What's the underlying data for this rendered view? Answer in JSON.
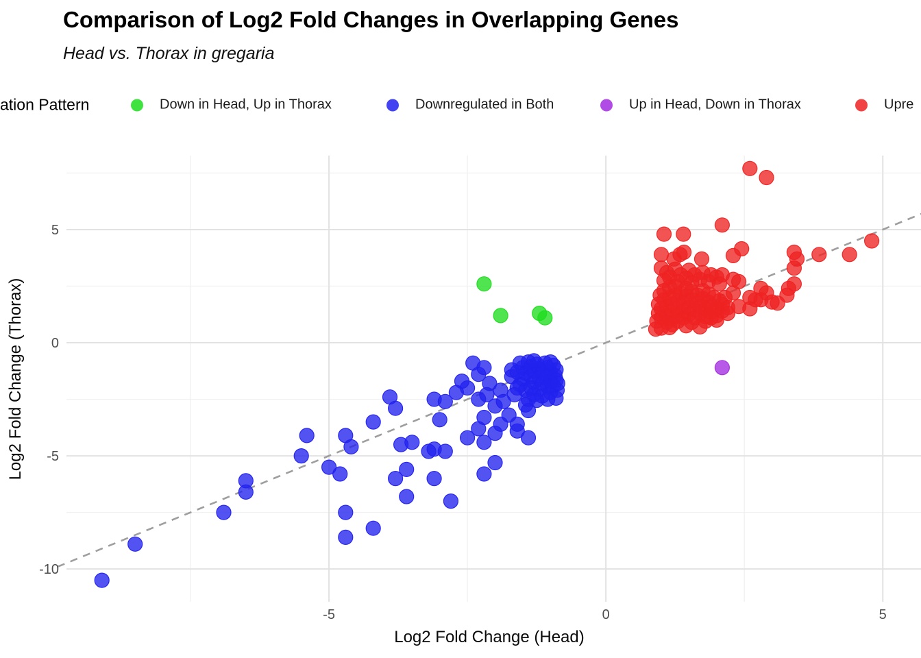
{
  "title": "Comparison of Log2 Fold Changes in Overlapping Genes",
  "subtitle": "Head vs. Thorax in gregaria",
  "legend": {
    "title": "ation Pattern",
    "items": [
      {
        "label": "Down in Head, Up in Thorax",
        "color": "#1fdd1f"
      },
      {
        "label": "Downregulated in Both",
        "color": "#2222ee"
      },
      {
        "label": "Up in Head, Down in Thorax",
        "color": "#a32be0"
      },
      {
        "label": "Upre",
        "color": "#ee2222"
      }
    ]
  },
  "colors": {
    "green": "#1fdd1f",
    "blue": "#2222ee",
    "purple": "#a32be0",
    "red": "#ee2222",
    "grid_major": "#e2e2e2",
    "grid_minor": "#f1f1f1",
    "reference_line": "#9e9e9e",
    "tick_label": "#4d4d4d"
  },
  "chart_data": {
    "type": "scatter",
    "title": "Comparison of Log2 Fold Changes in Overlapping Genes",
    "subtitle": "Head vs. Thorax in gregaria",
    "xlabel": "Log2 Fold Change (Head)",
    "ylabel": "Log2 Fold Change (Thorax)",
    "xlim": [
      -9.74,
      5.69
    ],
    "ylim": [
      -11.45,
      8.27
    ],
    "x_ticks": [
      -5,
      0,
      5
    ],
    "y_ticks": [
      5,
      0,
      -5,
      -10
    ],
    "x_minor_ticks": [
      -7.5,
      -2.5,
      2.5
    ],
    "y_minor_ticks": [
      7.5,
      2.5,
      -2.5,
      -7.5
    ],
    "grid": true,
    "legend_position": "top",
    "point_opacity": 0.78,
    "point_radius_px": 10.5,
    "reference_line": {
      "type": "identity y=x",
      "style": "dashed",
      "color": "#9e9e9e",
      "from": [
        -9.9,
        -9.9
      ],
      "to": [
        5.75,
        5.75
      ]
    },
    "series": [
      {
        "name": "Down in Head, Up in Thorax",
        "color": "#1fdd1f",
        "points": [
          [
            -2.2,
            2.6
          ],
          [
            -1.9,
            1.2
          ],
          [
            -1.2,
            1.3
          ],
          [
            -1.1,
            1.1
          ]
        ]
      },
      {
        "name": "Downregulated in Both",
        "color": "#2222ee",
        "points": [
          [
            -9.1,
            -10.5
          ],
          [
            -8.5,
            -8.9
          ],
          [
            -6.9,
            -7.5
          ],
          [
            -6.5,
            -6.1
          ],
          [
            -6.5,
            -6.6
          ],
          [
            -5.5,
            -5.0
          ],
          [
            -5.4,
            -4.1
          ],
          [
            -5.0,
            -5.5
          ],
          [
            -4.8,
            -5.8
          ],
          [
            -4.7,
            -4.1
          ],
          [
            -4.6,
            -4.6
          ],
          [
            -4.7,
            -7.5
          ],
          [
            -4.7,
            -8.6
          ],
          [
            -4.2,
            -8.2
          ],
          [
            -4.2,
            -3.5
          ],
          [
            -3.9,
            -2.4
          ],
          [
            -3.8,
            -2.9
          ],
          [
            -3.8,
            -6.0
          ],
          [
            -3.7,
            -4.5
          ],
          [
            -3.6,
            -5.6
          ],
          [
            -3.6,
            -6.8
          ],
          [
            -3.5,
            -4.4
          ],
          [
            -3.2,
            -4.8
          ],
          [
            -3.1,
            -6.0
          ],
          [
            -3.1,
            -4.7
          ],
          [
            -2.9,
            -4.8
          ],
          [
            -2.8,
            -7.0
          ],
          [
            -2.5,
            -4.2
          ],
          [
            -2.3,
            -3.8
          ],
          [
            -2.2,
            -3.3
          ],
          [
            -2.2,
            -4.4
          ],
          [
            -2.2,
            -5.8
          ],
          [
            -2.0,
            -5.3
          ],
          [
            -2.0,
            -4.0
          ],
          [
            -1.9,
            -3.6
          ],
          [
            -1.75,
            -3.2
          ],
          [
            -1.6,
            -3.6
          ],
          [
            -1.6,
            -3.9
          ],
          [
            -1.4,
            -4.2
          ],
          [
            -1.4,
            -3.0
          ],
          [
            -3.1,
            -2.5
          ],
          [
            -2.9,
            -2.6
          ],
          [
            -3.0,
            -3.4
          ],
          [
            -2.4,
            -0.9
          ],
          [
            -2.2,
            -1.1
          ],
          [
            -2.3,
            -1.4
          ],
          [
            -2.5,
            -2.0
          ],
          [
            -2.3,
            -2.5
          ],
          [
            -2.0,
            -2.8
          ],
          [
            -1.7,
            -1.2
          ],
          [
            -1.7,
            -1.5
          ],
          [
            -2.6,
            -1.7
          ],
          [
            -2.7,
            -2.2
          ],
          [
            -2.1,
            -1.8
          ],
          [
            -1.9,
            -2.1
          ],
          [
            -1.85,
            -2.6
          ],
          [
            -2.15,
            -2.3
          ],
          [
            -1.55,
            -0.9
          ],
          [
            -1.5,
            -1.1
          ],
          [
            -1.45,
            -1.35
          ],
          [
            -1.5,
            -1.6
          ],
          [
            -1.55,
            -1.85
          ],
          [
            -1.45,
            -2.1
          ],
          [
            -1.4,
            -0.85
          ],
          [
            -1.35,
            -1.05
          ],
          [
            -1.3,
            -1.25
          ],
          [
            -1.35,
            -1.5
          ],
          [
            -1.3,
            -1.75
          ],
          [
            -1.35,
            -2.0
          ],
          [
            -1.3,
            -2.3
          ],
          [
            -1.25,
            -0.95
          ],
          [
            -1.2,
            -1.15
          ],
          [
            -1.15,
            -1.35
          ],
          [
            -1.2,
            -1.55
          ],
          [
            -1.15,
            -1.8
          ],
          [
            -1.2,
            -2.05
          ],
          [
            -1.15,
            -2.35
          ],
          [
            -1.1,
            -0.9
          ],
          [
            -1.05,
            -1.1
          ],
          [
            -1.0,
            -1.3
          ],
          [
            -1.05,
            -1.5
          ],
          [
            -1.0,
            -1.7
          ],
          [
            -1.05,
            -1.95
          ],
          [
            -1.0,
            -2.2
          ],
          [
            -0.95,
            -1.0
          ],
          [
            -0.9,
            -1.2
          ],
          [
            -0.92,
            -1.45
          ],
          [
            -0.9,
            -1.65
          ],
          [
            -0.95,
            -1.9
          ],
          [
            -0.88,
            -2.1
          ],
          [
            -1.6,
            -1.3
          ],
          [
            -1.6,
            -2.0
          ],
          [
            -1.25,
            -2.55
          ],
          [
            -1.05,
            -2.5
          ],
          [
            -0.87,
            -1.8
          ],
          [
            -0.9,
            -2.45
          ],
          [
            -1.4,
            -2.5
          ],
          [
            -1.65,
            -2.3
          ],
          [
            -1.3,
            -0.8
          ],
          [
            -1.0,
            -0.85
          ],
          [
            -1.45,
            -2.75
          ]
        ]
      },
      {
        "name": "Up in Head, Down in Thorax",
        "color": "#a32be0",
        "points": [
          [
            2.1,
            -1.1
          ]
        ]
      },
      {
        "name": "Upregulated in Both",
        "color": "#ee2222",
        "points": [
          [
            2.6,
            7.7
          ],
          [
            2.9,
            7.3
          ],
          [
            2.1,
            5.2
          ],
          [
            1.05,
            4.8
          ],
          [
            1.4,
            4.8
          ],
          [
            4.8,
            4.5
          ],
          [
            4.4,
            3.9
          ],
          [
            3.85,
            3.9
          ],
          [
            3.4,
            4.0
          ],
          [
            3.45,
            3.7
          ],
          [
            3.4,
            3.3
          ],
          [
            2.45,
            4.15
          ],
          [
            2.3,
            3.85
          ],
          [
            1.0,
            3.9
          ],
          [
            1.23,
            3.7
          ],
          [
            1.34,
            3.9
          ],
          [
            1.41,
            4.0
          ],
          [
            1.73,
            3.7
          ],
          [
            1.0,
            3.3
          ],
          [
            1.1,
            3.1
          ],
          [
            1.25,
            3.25
          ],
          [
            1.35,
            3.0
          ],
          [
            1.5,
            3.2
          ],
          [
            1.6,
            3.0
          ],
          [
            1.75,
            3.1
          ],
          [
            1.9,
            3.0
          ],
          [
            1.15,
            2.9
          ],
          [
            1.45,
            2.85
          ],
          [
            1.7,
            2.8
          ],
          [
            2.0,
            2.9
          ],
          [
            2.1,
            3.0
          ],
          [
            1.05,
            2.75
          ],
          [
            1.3,
            2.7
          ],
          [
            1.55,
            2.65
          ],
          [
            1.85,
            2.7
          ],
          [
            2.05,
            2.6
          ],
          [
            3.4,
            2.6
          ],
          [
            3.3,
            2.4
          ],
          [
            3.27,
            2.1
          ],
          [
            2.8,
            2.4
          ],
          [
            2.9,
            2.2
          ],
          [
            2.8,
            1.9
          ],
          [
            2.7,
            1.9
          ],
          [
            2.6,
            2.0
          ],
          [
            3.0,
            1.8
          ],
          [
            3.1,
            1.75
          ],
          [
            2.4,
            1.6
          ],
          [
            2.6,
            1.5
          ],
          [
            2.3,
            2.8
          ],
          [
            2.4,
            2.7
          ],
          [
            2.3,
            2.2
          ],
          [
            0.95,
            1.3
          ],
          [
            0.95,
            1.7
          ],
          [
            0.98,
            2.1
          ],
          [
            1.0,
            1.1
          ],
          [
            1.0,
            1.5
          ],
          [
            1.05,
            1.9
          ],
          [
            1.05,
            2.3
          ],
          [
            1.1,
            1.2
          ],
          [
            1.1,
            1.6
          ],
          [
            1.15,
            2.0
          ],
          [
            1.15,
            2.45
          ],
          [
            1.2,
            1.05
          ],
          [
            1.2,
            1.35
          ],
          [
            1.2,
            1.7
          ],
          [
            1.25,
            2.1
          ],
          [
            1.25,
            2.5
          ],
          [
            1.3,
            1.2
          ],
          [
            1.3,
            1.5
          ],
          [
            1.3,
            1.85
          ],
          [
            1.35,
            2.2
          ],
          [
            1.4,
            1.1
          ],
          [
            1.4,
            1.4
          ],
          [
            1.4,
            1.75
          ],
          [
            1.45,
            2.05
          ],
          [
            1.45,
            2.4
          ],
          [
            1.5,
            1.25
          ],
          [
            1.5,
            1.55
          ],
          [
            1.55,
            1.9
          ],
          [
            1.55,
            2.25
          ],
          [
            1.6,
            1.1
          ],
          [
            1.6,
            1.45
          ],
          [
            1.65,
            1.75
          ],
          [
            1.65,
            2.1
          ],
          [
            1.7,
            1.3
          ],
          [
            1.7,
            1.6
          ],
          [
            1.75,
            1.95
          ],
          [
            1.75,
            2.3
          ],
          [
            1.8,
            1.15
          ],
          [
            1.8,
            1.5
          ],
          [
            1.85,
            1.8
          ],
          [
            1.85,
            2.15
          ],
          [
            1.9,
            1.35
          ],
          [
            1.9,
            1.65
          ],
          [
            1.95,
            2.0
          ],
          [
            2.0,
            1.2
          ],
          [
            2.0,
            1.5
          ],
          [
            2.05,
            1.85
          ],
          [
            2.1,
            1.4
          ],
          [
            2.1,
            1.7
          ],
          [
            2.15,
            2.0
          ],
          [
            2.2,
            1.55
          ],
          [
            2.2,
            1.3
          ],
          [
            0.92,
            0.95
          ],
          [
            1.1,
            0.9
          ],
          [
            1.3,
            0.95
          ],
          [
            1.55,
            0.9
          ],
          [
            1.8,
            0.95
          ],
          [
            2.0,
            1.0
          ],
          [
            1.45,
            0.75
          ],
          [
            1.2,
            0.8
          ],
          [
            1.7,
            0.7
          ],
          [
            1.0,
            0.65
          ],
          [
            0.9,
            0.6
          ],
          [
            1.15,
            0.67
          ],
          [
            1.9,
            1.1
          ]
        ]
      }
    ]
  }
}
